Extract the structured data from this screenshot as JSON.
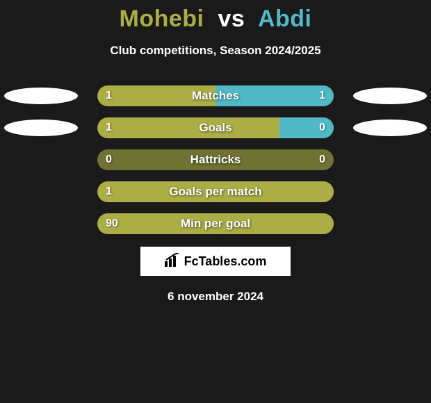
{
  "title": {
    "player1": "Mohebi",
    "vs": "vs",
    "player2": "Abdi"
  },
  "subtitle": "Club competitions, Season 2024/2025",
  "colors": {
    "player1": "#aaae44",
    "player2": "#4fbac6",
    "track": "#6f7232",
    "background": "#1a1a1a",
    "ellipse": "#ffffff",
    "text": "#ffffff"
  },
  "stats": [
    {
      "label": "Matches",
      "left_val": "1",
      "right_val": "1",
      "left_pct": 50,
      "right_pct": 50,
      "show_left_ellipse": true,
      "show_right_ellipse": true
    },
    {
      "label": "Goals",
      "left_val": "1",
      "right_val": "0",
      "left_pct": 77,
      "right_pct": 23,
      "show_left_ellipse": true,
      "show_right_ellipse": true
    },
    {
      "label": "Hattricks",
      "left_val": "0",
      "right_val": "0",
      "left_pct": 0,
      "right_pct": 0,
      "show_left_ellipse": false,
      "show_right_ellipse": false
    },
    {
      "label": "Goals per match",
      "left_val": "1",
      "right_val": "",
      "left_pct": 100,
      "right_pct": 0,
      "show_left_ellipse": false,
      "show_right_ellipse": false
    },
    {
      "label": "Min per goal",
      "left_val": "90",
      "right_val": "",
      "left_pct": 100,
      "right_pct": 0,
      "show_left_ellipse": false,
      "show_right_ellipse": false
    }
  ],
  "brand": {
    "name": "FcTables.com"
  },
  "date": "6 november 2024"
}
